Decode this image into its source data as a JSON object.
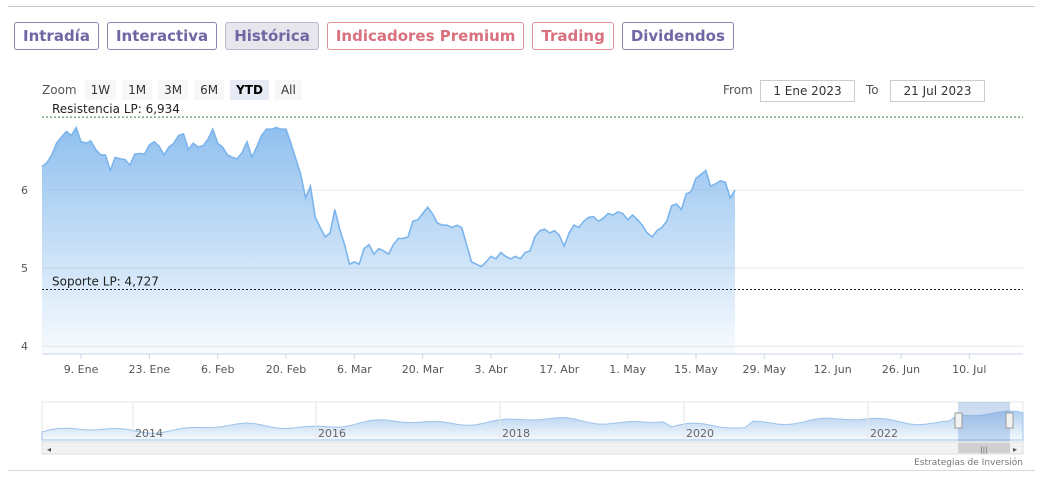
{
  "tabs": [
    {
      "label": "Intradía",
      "state": "normal"
    },
    {
      "label": "Interactiva",
      "state": "normal"
    },
    {
      "label": "Histórica",
      "state": "active"
    },
    {
      "label": "Indicadores Premium",
      "state": "premium"
    },
    {
      "label": "Trading",
      "state": "premium"
    },
    {
      "label": "Dividendos",
      "state": "normal"
    }
  ],
  "zoom": {
    "label": "Zoom",
    "buttons": [
      "1W",
      "1M",
      "3M",
      "6M",
      "YTD",
      "All"
    ],
    "selected": "YTD"
  },
  "range": {
    "from_label": "From",
    "from_value": "1 Ene 2023",
    "to_label": "To",
    "to_value": "21 Jul 2023"
  },
  "colors": {
    "line": "#7cb5ec",
    "fill_top": "#7cb5ec",
    "tab_border": "#8c84b5",
    "premium_border": "#e0909a",
    "guide_line": "#2e7d32"
  },
  "chart_data": {
    "type": "area",
    "title": "",
    "xlabel": "",
    "ylabel": "",
    "ylim": [
      3.9,
      7.0
    ],
    "yticks": [
      4,
      5,
      6
    ],
    "xlim": [
      "2023-01-01",
      "2023-07-21"
    ],
    "xticks": [
      {
        "date": "2023-01-09",
        "label": "9. Ene"
      },
      {
        "date": "2023-01-23",
        "label": "23. Ene"
      },
      {
        "date": "2023-02-06",
        "label": "6. Feb"
      },
      {
        "date": "2023-02-20",
        "label": "20. Feb"
      },
      {
        "date": "2023-03-06",
        "label": "6. Mar"
      },
      {
        "date": "2023-03-20",
        "label": "20. Mar"
      },
      {
        "date": "2023-04-03",
        "label": "3. Abr"
      },
      {
        "date": "2023-04-17",
        "label": "17. Abr"
      },
      {
        "date": "2023-05-01",
        "label": "1. May"
      },
      {
        "date": "2023-05-15",
        "label": "15. May"
      },
      {
        "date": "2023-05-29",
        "label": "29. May"
      },
      {
        "date": "2023-06-12",
        "label": "12. Jun"
      },
      {
        "date": "2023-06-26",
        "label": "26. Jun"
      },
      {
        "date": "2023-07-10",
        "label": "10. Jul"
      }
    ],
    "series": [
      {
        "points": [
          [
            "2023-01-01",
            6.3
          ],
          [
            "2023-01-02",
            6.35
          ],
          [
            "2023-01-03",
            6.45
          ],
          [
            "2023-01-04",
            6.6
          ],
          [
            "2023-01-05",
            6.68
          ],
          [
            "2023-01-06",
            6.75
          ],
          [
            "2023-01-07",
            6.7
          ],
          [
            "2023-01-08",
            6.8
          ],
          [
            "2023-01-09",
            6.62
          ],
          [
            "2023-01-10",
            6.6
          ],
          [
            "2023-01-11",
            6.63
          ],
          [
            "2023-01-12",
            6.52
          ],
          [
            "2023-01-13",
            6.45
          ],
          [
            "2023-01-14",
            6.45
          ],
          [
            "2023-01-15",
            6.25
          ],
          [
            "2023-01-16",
            6.42
          ],
          [
            "2023-01-17",
            6.4
          ],
          [
            "2023-01-18",
            6.39
          ],
          [
            "2023-01-19",
            6.32
          ],
          [
            "2023-01-20",
            6.46
          ],
          [
            "2023-01-21",
            6.47
          ],
          [
            "2023-01-22",
            6.46
          ],
          [
            "2023-01-23",
            6.58
          ],
          [
            "2023-01-24",
            6.62
          ],
          [
            "2023-01-25",
            6.56
          ],
          [
            "2023-01-26",
            6.45
          ],
          [
            "2023-01-27",
            6.55
          ],
          [
            "2023-01-28",
            6.6
          ],
          [
            "2023-01-29",
            6.7
          ],
          [
            "2023-01-30",
            6.72
          ],
          [
            "2023-01-31",
            6.52
          ],
          [
            "2023-02-01",
            6.6
          ],
          [
            "2023-02-02",
            6.55
          ],
          [
            "2023-02-03",
            6.57
          ],
          [
            "2023-02-04",
            6.65
          ],
          [
            "2023-02-05",
            6.78
          ],
          [
            "2023-02-06",
            6.6
          ],
          [
            "2023-02-07",
            6.55
          ],
          [
            "2023-02-08",
            6.45
          ],
          [
            "2023-02-09",
            6.42
          ],
          [
            "2023-02-10",
            6.4
          ],
          [
            "2023-02-11",
            6.48
          ],
          [
            "2023-02-12",
            6.62
          ],
          [
            "2023-02-13",
            6.42
          ],
          [
            "2023-02-14",
            6.55
          ],
          [
            "2023-02-15",
            6.7
          ],
          [
            "2023-02-16",
            6.78
          ],
          [
            "2023-02-17",
            6.78
          ],
          [
            "2023-02-18",
            6.8
          ],
          [
            "2023-02-19",
            6.78
          ],
          [
            "2023-02-20",
            6.78
          ],
          [
            "2023-02-21",
            6.6
          ],
          [
            "2023-02-22",
            6.4
          ],
          [
            "2023-02-23",
            6.2
          ],
          [
            "2023-02-24",
            5.9
          ],
          [
            "2023-02-25",
            6.05
          ],
          [
            "2023-02-26",
            5.65
          ],
          [
            "2023-02-27",
            5.52
          ],
          [
            "2023-02-28",
            5.4
          ],
          [
            "2023-03-01",
            5.45
          ],
          [
            "2023-03-02",
            5.75
          ],
          [
            "2023-03-03",
            5.5
          ],
          [
            "2023-03-04",
            5.3
          ],
          [
            "2023-03-05",
            5.05
          ],
          [
            "2023-03-06",
            5.08
          ],
          [
            "2023-03-07",
            5.05
          ],
          [
            "2023-03-08",
            5.25
          ],
          [
            "2023-03-09",
            5.3
          ],
          [
            "2023-03-10",
            5.18
          ],
          [
            "2023-03-11",
            5.25
          ],
          [
            "2023-03-12",
            5.22
          ],
          [
            "2023-03-13",
            5.18
          ],
          [
            "2023-03-14",
            5.3
          ],
          [
            "2023-03-15",
            5.38
          ],
          [
            "2023-03-16",
            5.38
          ],
          [
            "2023-03-17",
            5.4
          ],
          [
            "2023-03-18",
            5.6
          ],
          [
            "2023-03-19",
            5.62
          ],
          [
            "2023-03-20",
            5.7
          ],
          [
            "2023-03-21",
            5.78
          ],
          [
            "2023-03-22",
            5.7
          ],
          [
            "2023-03-23",
            5.58
          ],
          [
            "2023-03-24",
            5.55
          ],
          [
            "2023-03-25",
            5.55
          ],
          [
            "2023-03-26",
            5.52
          ],
          [
            "2023-03-27",
            5.55
          ],
          [
            "2023-03-28",
            5.52
          ],
          [
            "2023-03-29",
            5.3
          ],
          [
            "2023-03-30",
            5.08
          ],
          [
            "2023-03-31",
            5.05
          ],
          [
            "2023-04-01",
            5.02
          ],
          [
            "2023-04-02",
            5.08
          ],
          [
            "2023-04-03",
            5.15
          ],
          [
            "2023-04-04",
            5.12
          ],
          [
            "2023-04-05",
            5.2
          ],
          [
            "2023-04-06",
            5.15
          ],
          [
            "2023-04-07",
            5.12
          ],
          [
            "2023-04-08",
            5.15
          ],
          [
            "2023-04-09",
            5.12
          ],
          [
            "2023-04-10",
            5.2
          ],
          [
            "2023-04-11",
            5.22
          ],
          [
            "2023-04-12",
            5.4
          ],
          [
            "2023-04-13",
            5.48
          ],
          [
            "2023-04-14",
            5.5
          ],
          [
            "2023-04-15",
            5.45
          ],
          [
            "2023-04-16",
            5.48
          ],
          [
            "2023-04-17",
            5.42
          ],
          [
            "2023-04-18",
            5.28
          ],
          [
            "2023-04-19",
            5.45
          ],
          [
            "2023-04-20",
            5.55
          ],
          [
            "2023-04-21",
            5.52
          ],
          [
            "2023-04-22",
            5.6
          ],
          [
            "2023-04-23",
            5.65
          ],
          [
            "2023-04-24",
            5.66
          ],
          [
            "2023-04-25",
            5.6
          ],
          [
            "2023-04-26",
            5.64
          ],
          [
            "2023-04-27",
            5.7
          ],
          [
            "2023-04-28",
            5.68
          ],
          [
            "2023-04-29",
            5.72
          ],
          [
            "2023-04-30",
            5.7
          ],
          [
            "2023-05-01",
            5.62
          ],
          [
            "2023-05-02",
            5.68
          ],
          [
            "2023-05-03",
            5.62
          ],
          [
            "2023-05-04",
            5.55
          ],
          [
            "2023-05-05",
            5.45
          ],
          [
            "2023-05-06",
            5.4
          ],
          [
            "2023-05-07",
            5.48
          ],
          [
            "2023-05-08",
            5.52
          ],
          [
            "2023-05-09",
            5.6
          ],
          [
            "2023-05-10",
            5.8
          ],
          [
            "2023-05-11",
            5.82
          ],
          [
            "2023-05-12",
            5.75
          ],
          [
            "2023-05-13",
            5.95
          ],
          [
            "2023-05-14",
            5.98
          ],
          [
            "2023-05-15",
            6.15
          ],
          [
            "2023-05-16",
            6.2
          ],
          [
            "2023-05-17",
            6.25
          ],
          [
            "2023-05-18",
            6.05
          ],
          [
            "2023-05-19",
            6.08
          ],
          [
            "2023-05-20",
            6.12
          ],
          [
            "2023-05-21",
            6.1
          ],
          [
            "2023-05-22",
            5.9
          ],
          [
            "2023-05-23",
            6.0
          ]
        ]
      }
    ],
    "support_line": {
      "label": "Soporte LP: 4,727",
      "value": 4.727
    },
    "resistance_line": {
      "label": "Resistencia LP: 6,934",
      "value": 6.934
    },
    "navigator": {
      "xticks": [
        "2014",
        "2016",
        "2018",
        "2020",
        "2022"
      ],
      "credit": "Estrategias de Inversión"
    },
    "grid": true,
    "legend": "none"
  }
}
